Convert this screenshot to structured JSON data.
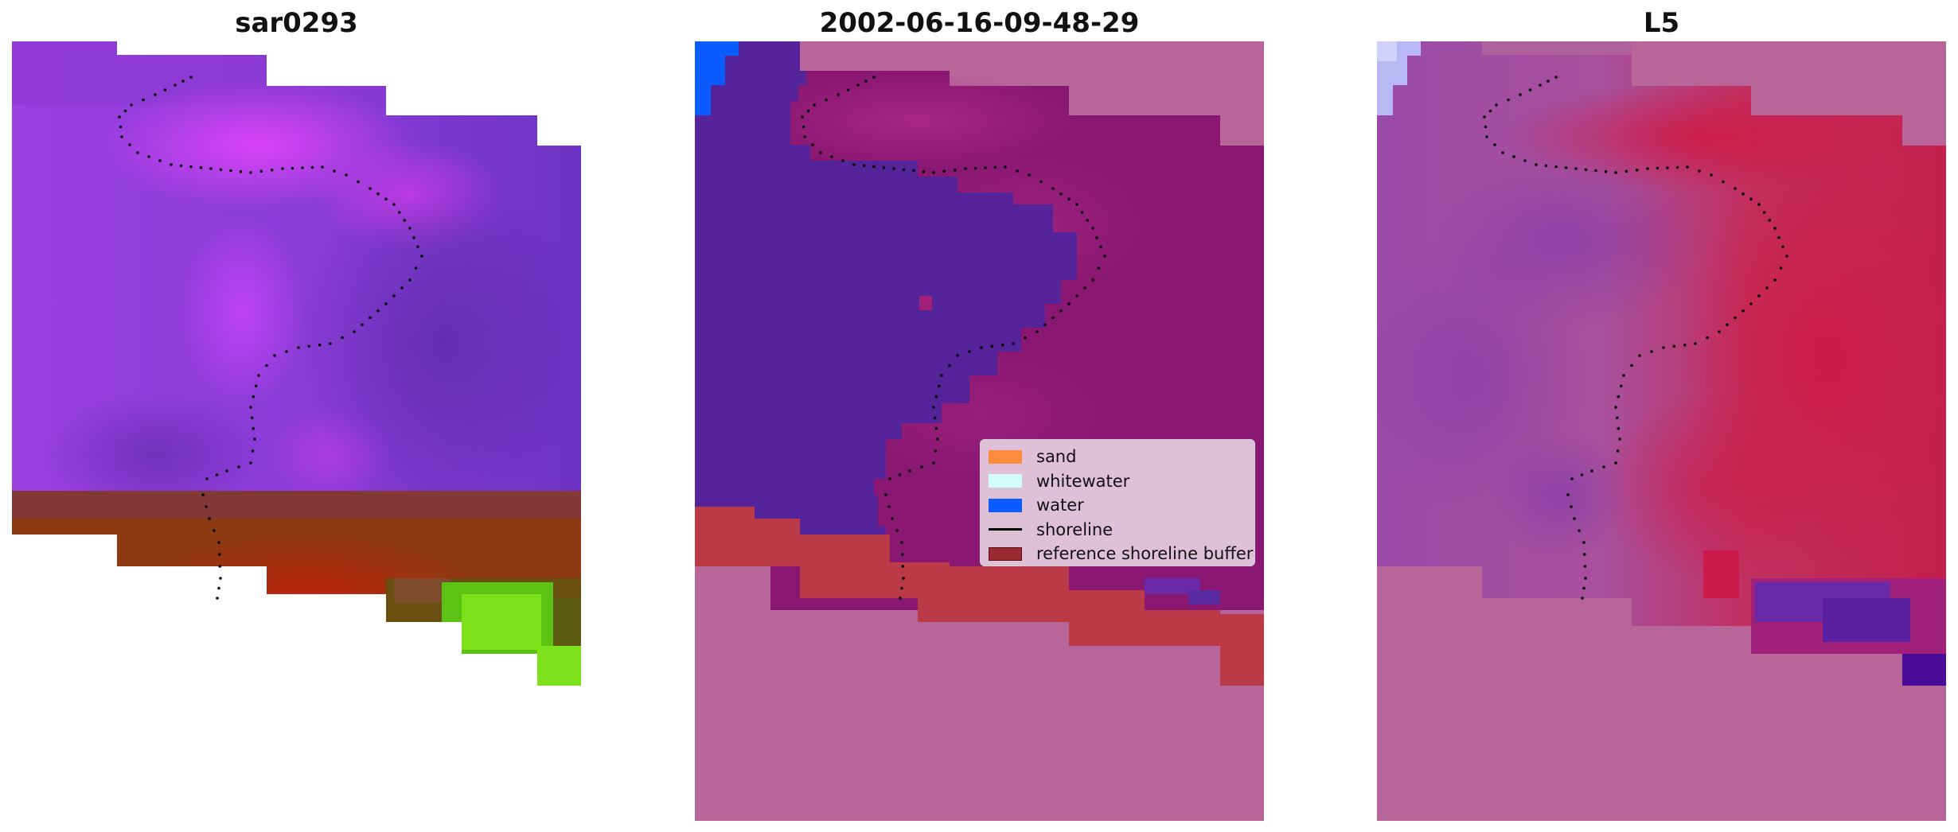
{
  "panels": [
    {
      "id": "rgb",
      "title": "sar0293"
    },
    {
      "id": "classified",
      "title": "2002-06-16-09-48-29"
    },
    {
      "id": "index",
      "title": "L5"
    }
  ],
  "legend": {
    "items": [
      {
        "label": "sand",
        "kind": "patch",
        "color": "#ff8c3c"
      },
      {
        "label": "whitewater",
        "kind": "patch",
        "color": "#d2fcfa"
      },
      {
        "label": "water",
        "kind": "patch",
        "color": "#0a5cff"
      },
      {
        "label": "shoreline",
        "kind": "line",
        "color": "#000000"
      },
      {
        "label": "reference shoreline buffer",
        "kind": "patch",
        "color": "#9b2a32"
      }
    ]
  },
  "colors": {
    "rgb_violet": "#9a3fe0",
    "rgb_magenta": "#d84fe8",
    "rgb_purple": "#6c34c4",
    "rgb_brown": "#8e3a12",
    "rgb_green": "#7ce01a",
    "class_water_dark": "#55239a",
    "class_land": "#b8669a",
    "class_sand_dark": "#8a1872",
    "class_buffer": "#bb3a48",
    "class_blue": "#0a5cff",
    "index_crimson": "#c3204e",
    "index_purple": "#8e4aa6",
    "index_lavender": "#b8b8f5"
  }
}
